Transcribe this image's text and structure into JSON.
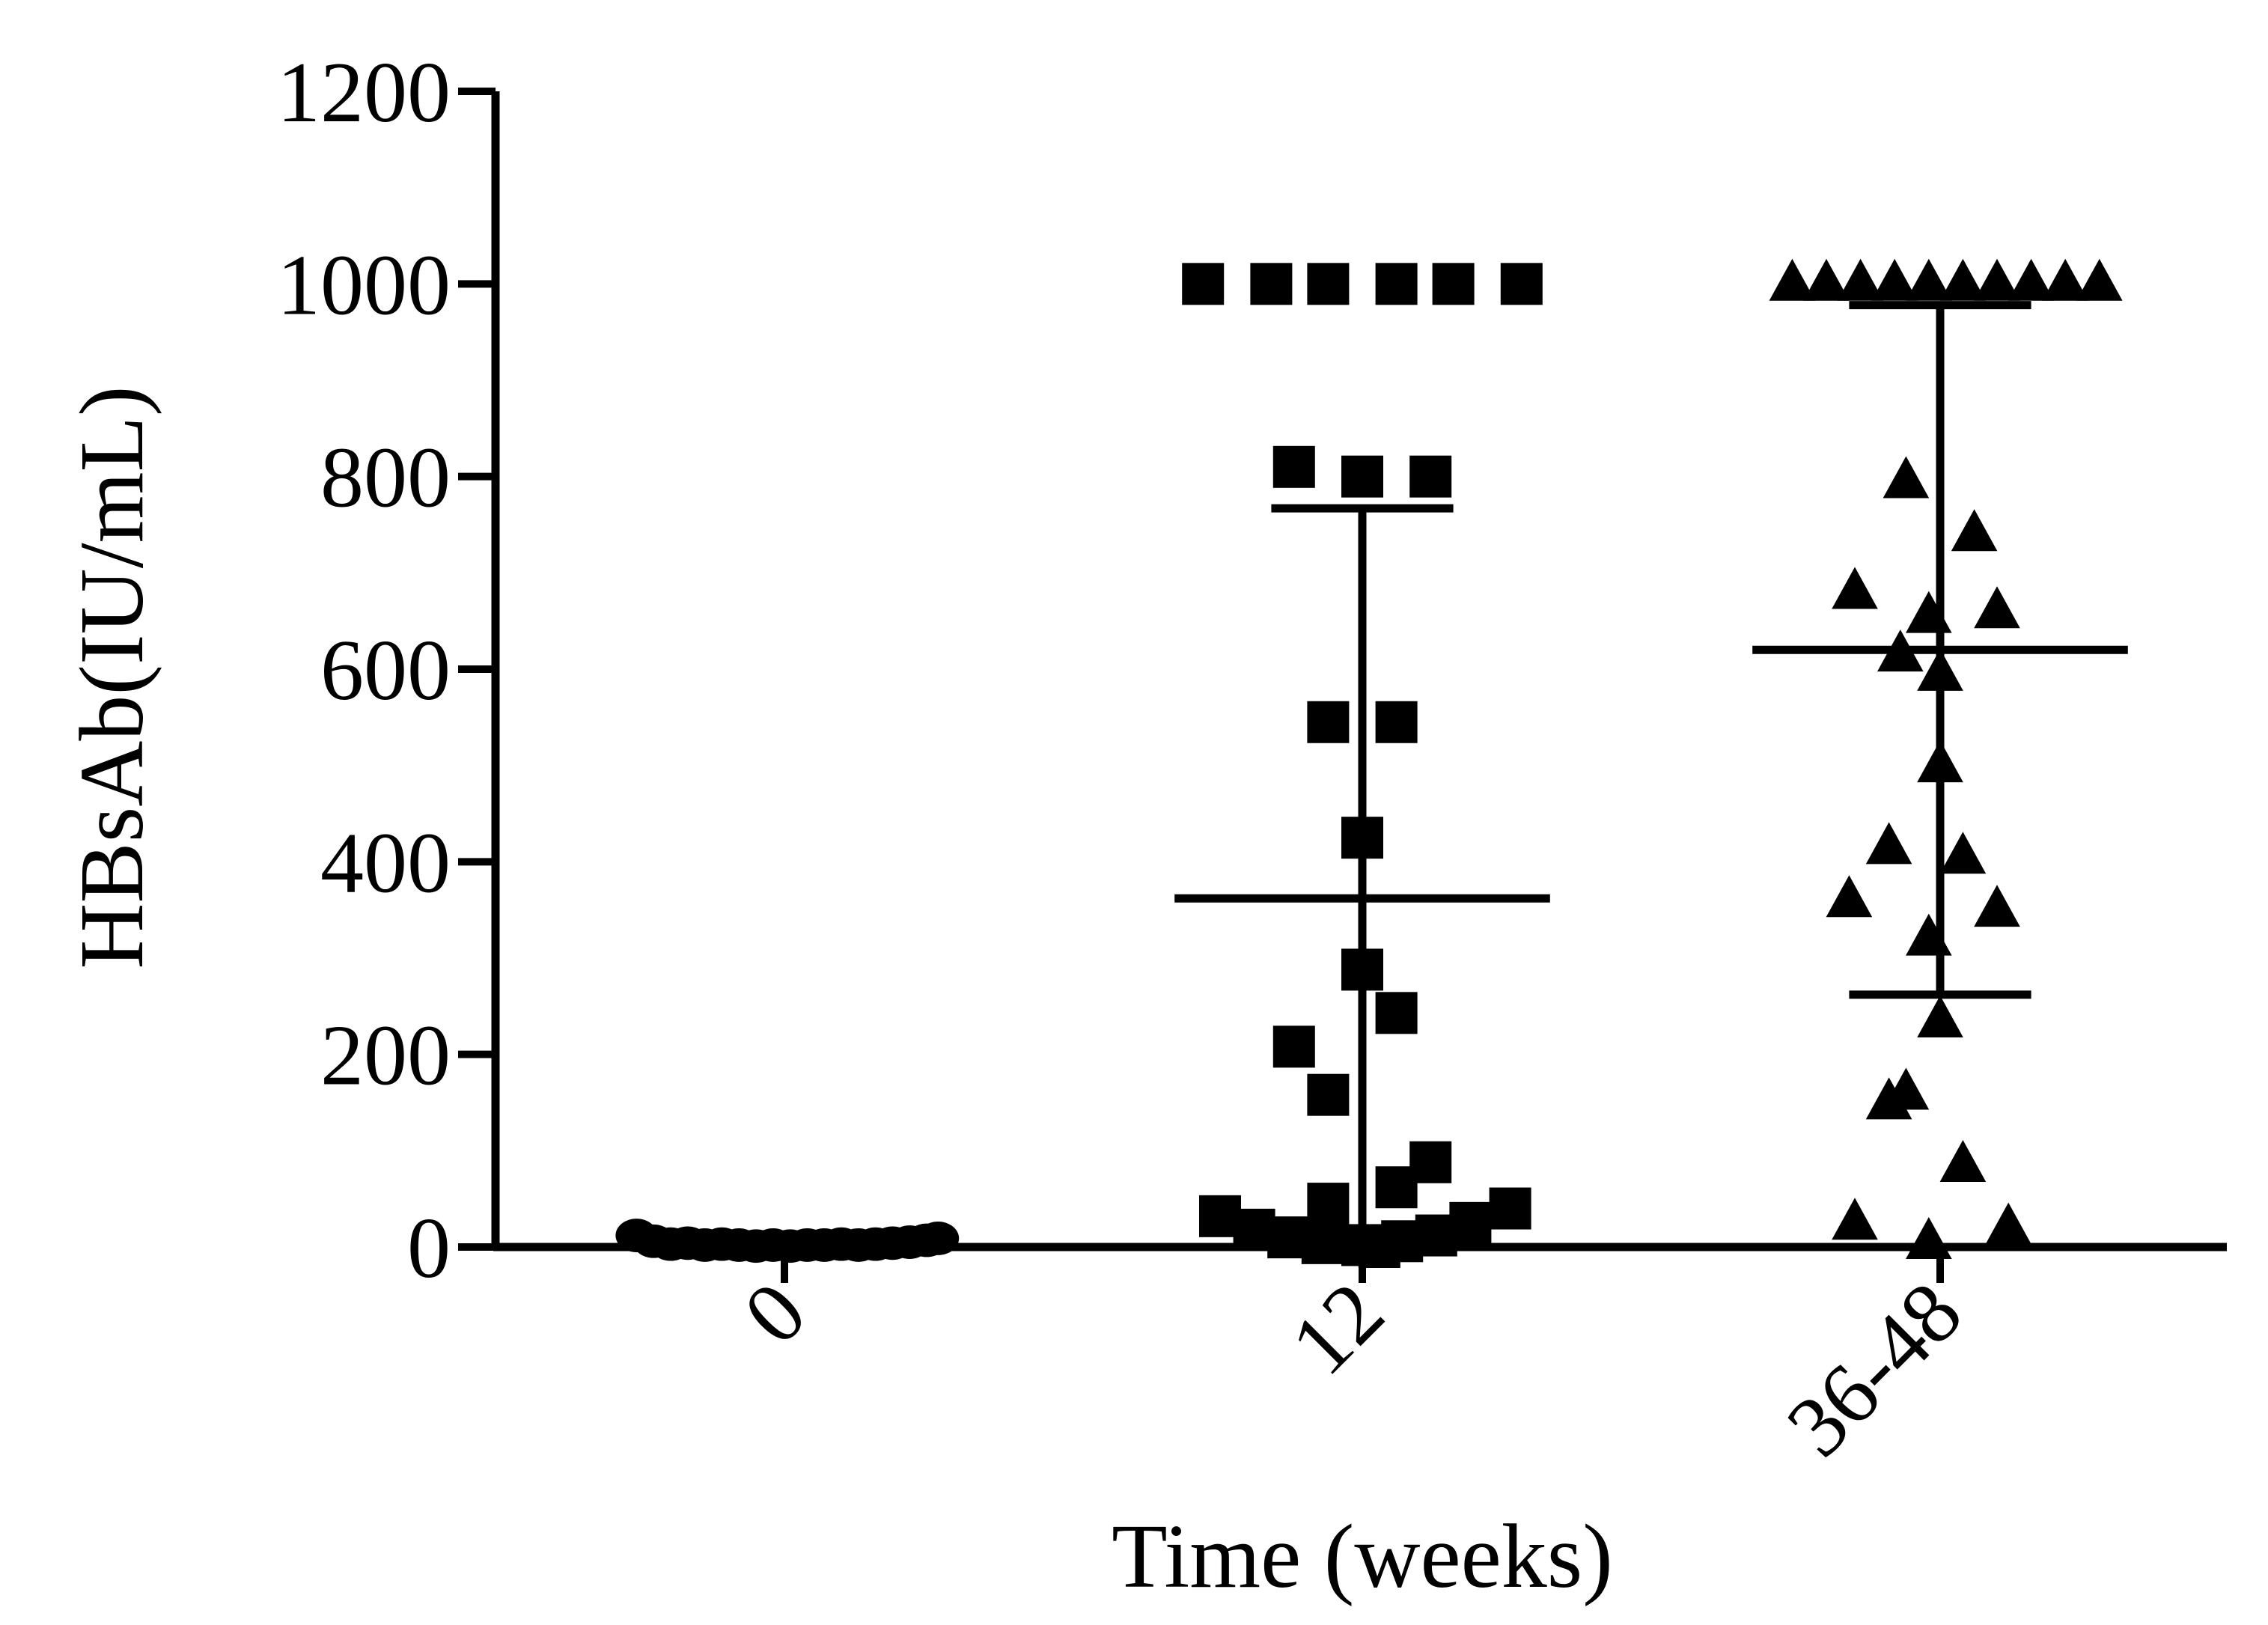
{
  "chart_data": {
    "type": "scatter",
    "subtype": "column-scatter with mean and standard deviation",
    "title": "",
    "xlabel": "Time (weeks)",
    "ylabel": "HBsAb(IU/mL)",
    "ylim": [
      0,
      1200
    ],
    "yticks": [
      0,
      200,
      400,
      600,
      800,
      1000,
      1200
    ],
    "ytick_labels": [
      "0",
      "200",
      "400",
      "600",
      "800",
      "1000",
      "1200"
    ],
    "categories": [
      "0",
      "12",
      "36-48"
    ],
    "grid": false,
    "legend": "none",
    "series": [
      {
        "name": "0",
        "marker": "circle",
        "mean": 5,
        "sd": 3,
        "show_error_bars": false,
        "points": [
          {
            "dx": -0.26,
            "y": 12
          },
          {
            "dx": -0.23,
            "y": 6
          },
          {
            "dx": -0.2,
            "y": 3
          },
          {
            "dx": -0.17,
            "y": 4
          },
          {
            "dx": -0.14,
            "y": 2
          },
          {
            "dx": -0.11,
            "y": 3
          },
          {
            "dx": -0.08,
            "y": 2
          },
          {
            "dx": -0.05,
            "y": 1
          },
          {
            "dx": -0.02,
            "y": 2
          },
          {
            "dx": 0.01,
            "y": 1
          },
          {
            "dx": 0.04,
            "y": 2
          },
          {
            "dx": 0.07,
            "y": 2
          },
          {
            "dx": 0.1,
            "y": 3
          },
          {
            "dx": 0.13,
            "y": 2
          },
          {
            "dx": 0.16,
            "y": 3
          },
          {
            "dx": 0.19,
            "y": 4
          },
          {
            "dx": 0.22,
            "y": 5
          },
          {
            "dx": 0.25,
            "y": 7
          },
          {
            "dx": 0.27,
            "y": 9
          }
        ]
      },
      {
        "name": "12",
        "marker": "square",
        "mean": 362,
        "sd": 405,
        "show_error_bars": true,
        "points": [
          {
            "dx": -0.28,
            "y": 1000
          },
          {
            "dx": -0.16,
            "y": 1000
          },
          {
            "dx": -0.06,
            "y": 1000
          },
          {
            "dx": 0.06,
            "y": 1000
          },
          {
            "dx": 0.16,
            "y": 1000
          },
          {
            "dx": 0.28,
            "y": 1000
          },
          {
            "dx": -0.12,
            "y": 810
          },
          {
            "dx": 0.0,
            "y": 800
          },
          {
            "dx": 0.12,
            "y": 800
          },
          {
            "dx": -0.06,
            "y": 545
          },
          {
            "dx": 0.06,
            "y": 545
          },
          {
            "dx": 0.0,
            "y": 425
          },
          {
            "dx": 0.0,
            "y": 288
          },
          {
            "dx": 0.06,
            "y": 243
          },
          {
            "dx": -0.12,
            "y": 208
          },
          {
            "dx": -0.06,
            "y": 158
          },
          {
            "dx": 0.12,
            "y": 88
          },
          {
            "dx": 0.06,
            "y": 62
          },
          {
            "dx": -0.06,
            "y": 45
          },
          {
            "dx": 0.26,
            "y": 40
          },
          {
            "dx": -0.25,
            "y": 32
          },
          {
            "dx": 0.19,
            "y": 25
          },
          {
            "dx": -0.19,
            "y": 18
          },
          {
            "dx": 0.13,
            "y": 12
          },
          {
            "dx": -0.13,
            "y": 10
          },
          {
            "dx": 0.07,
            "y": 6
          },
          {
            "dx": -0.07,
            "y": 4
          },
          {
            "dx": 0.0,
            "y": 2
          },
          {
            "dx": 0.03,
            "y": 0
          }
        ]
      },
      {
        "name": "36-48",
        "marker": "triangle",
        "mean": 620,
        "sd": 358,
        "show_error_bars": true,
        "points": [
          {
            "dx": -0.26,
            "y": 1000
          },
          {
            "dx": -0.2,
            "y": 1000
          },
          {
            "dx": -0.14,
            "y": 1000
          },
          {
            "dx": -0.08,
            "y": 1000
          },
          {
            "dx": -0.02,
            "y": 1000
          },
          {
            "dx": 0.04,
            "y": 1000
          },
          {
            "dx": 0.1,
            "y": 1000
          },
          {
            "dx": 0.16,
            "y": 1000
          },
          {
            "dx": 0.22,
            "y": 1000
          },
          {
            "dx": 0.28,
            "y": 1000
          },
          {
            "dx": -0.06,
            "y": 795
          },
          {
            "dx": 0.06,
            "y": 740
          },
          {
            "dx": -0.15,
            "y": 680
          },
          {
            "dx": 0.1,
            "y": 660
          },
          {
            "dx": -0.02,
            "y": 655
          },
          {
            "dx": -0.07,
            "y": 615
          },
          {
            "dx": 0.0,
            "y": 595
          },
          {
            "dx": 0.0,
            "y": 500
          },
          {
            "dx": -0.09,
            "y": 415
          },
          {
            "dx": 0.04,
            "y": 405
          },
          {
            "dx": -0.16,
            "y": 360
          },
          {
            "dx": 0.1,
            "y": 350
          },
          {
            "dx": -0.02,
            "y": 320
          },
          {
            "dx": 0.0,
            "y": 235
          },
          {
            "dx": -0.06,
            "y": 160
          },
          {
            "dx": -0.09,
            "y": 150
          },
          {
            "dx": 0.04,
            "y": 85
          },
          {
            "dx": -0.15,
            "y": 25
          },
          {
            "dx": 0.12,
            "y": 20
          },
          {
            "dx": -0.02,
            "y": 5
          }
        ]
      }
    ]
  }
}
